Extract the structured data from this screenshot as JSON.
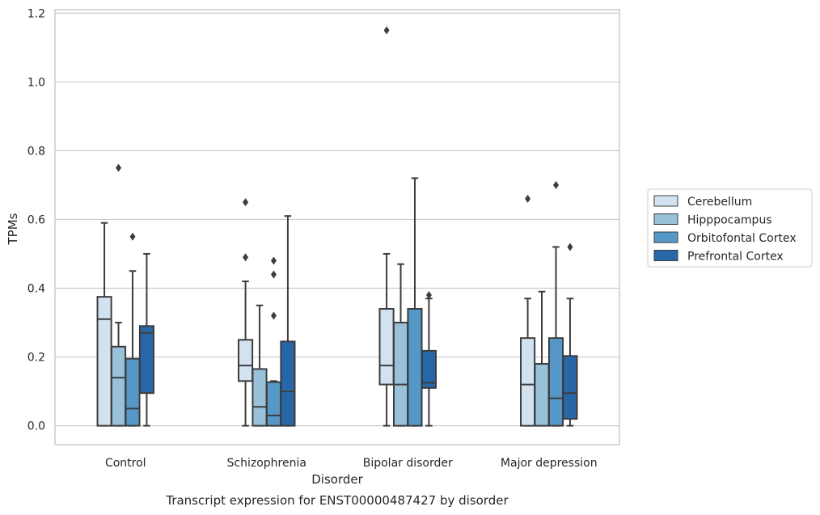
{
  "chart_data": {
    "type": "box",
    "title": "",
    "caption": "Transcript expression for ENST00000487427 by disorder",
    "xlabel": "Disorder",
    "ylabel": "TPMs",
    "ylim": [
      -0.055,
      1.21
    ],
    "yticks": [
      0.0,
      0.2,
      0.4,
      0.6,
      0.8,
      1.0,
      1.2
    ],
    "ytick_labels": [
      "0.0",
      "0.2",
      "0.4",
      "0.6",
      "0.8",
      "1.0",
      "1.2"
    ],
    "grid": "horizontal",
    "legend_position": "right",
    "categories": [
      "Control",
      "Schizophrenia",
      "Bipolar disorder",
      "Major depression"
    ],
    "series": [
      {
        "name": "Cerebellum",
        "color": "#d2e2f0",
        "boxes": [
          {
            "whislo": 0.0,
            "q1": 0.0,
            "med": 0.31,
            "q3": 0.375,
            "whishi": 0.59,
            "fliers": []
          },
          {
            "whislo": 0.0,
            "q1": 0.13,
            "med": 0.175,
            "q3": 0.25,
            "whishi": 0.42,
            "fliers": [
              0.49,
              0.65
            ]
          },
          {
            "whislo": 0.0,
            "q1": 0.12,
            "med": 0.175,
            "q3": 0.34,
            "whishi": 0.5,
            "fliers": [
              1.15
            ]
          },
          {
            "whislo": 0.0,
            "q1": 0.0,
            "med": 0.12,
            "q3": 0.255,
            "whishi": 0.37,
            "fliers": [
              0.66
            ]
          }
        ]
      },
      {
        "name": "Hipppocampus",
        "color": "#9ac1da",
        "boxes": [
          {
            "whislo": 0.0,
            "q1": 0.0,
            "med": 0.14,
            "q3": 0.23,
            "whishi": 0.3,
            "fliers": [
              0.75
            ]
          },
          {
            "whislo": 0.0,
            "q1": 0.0,
            "med": 0.055,
            "q3": 0.165,
            "whishi": 0.35,
            "fliers": []
          },
          {
            "whislo": 0.0,
            "q1": 0.0,
            "med": 0.12,
            "q3": 0.3,
            "whishi": 0.47,
            "fliers": []
          },
          {
            "whislo": 0.0,
            "q1": 0.0,
            "med": 0.18,
            "q3": 0.18,
            "whishi": 0.39,
            "fliers": []
          }
        ]
      },
      {
        "name": "Orbitofontal Cortex",
        "color": "#5598c7",
        "boxes": [
          {
            "whislo": 0.0,
            "q1": 0.0,
            "med": 0.05,
            "q3": 0.195,
            "whishi": 0.45,
            "fliers": [
              0.55
            ]
          },
          {
            "whislo": 0.0,
            "q1": 0.0,
            "med": 0.03,
            "q3": 0.127,
            "whishi": 0.13,
            "fliers": [
              0.32,
              0.44,
              0.48
            ]
          },
          {
            "whislo": 0.0,
            "q1": 0.0,
            "med": 0.34,
            "q3": 0.34,
            "whishi": 0.72,
            "fliers": []
          },
          {
            "whislo": 0.0,
            "q1": 0.0,
            "med": 0.08,
            "q3": 0.255,
            "whishi": 0.52,
            "fliers": [
              0.7
            ]
          }
        ]
      },
      {
        "name": "Prefrontal Cortex",
        "color": "#2767a8",
        "boxes": [
          {
            "whislo": 0.0,
            "q1": 0.095,
            "med": 0.27,
            "q3": 0.29,
            "whishi": 0.5,
            "fliers": []
          },
          {
            "whislo": 0.0,
            "q1": 0.0,
            "med": 0.1,
            "q3": 0.245,
            "whishi": 0.61,
            "fliers": []
          },
          {
            "whislo": 0.0,
            "q1": 0.11,
            "med": 0.125,
            "q3": 0.218,
            "whishi": 0.37,
            "fliers": [
              0.38
            ]
          },
          {
            "whislo": 0.0,
            "q1": 0.02,
            "med": 0.095,
            "q3": 0.203,
            "whishi": 0.37,
            "fliers": [
              0.52
            ]
          }
        ]
      }
    ]
  }
}
